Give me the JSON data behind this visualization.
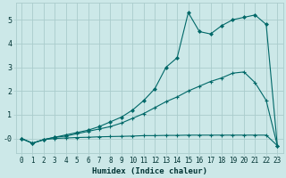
{
  "xlabel": "Humidex (Indice chaleur)",
  "bg_color": "#cce8e8",
  "grid_color": "#aacccc",
  "line_color": "#006868",
  "xlim": [
    -0.5,
    23.5
  ],
  "ylim": [
    -0.6,
    5.7
  ],
  "xticks": [
    0,
    1,
    2,
    3,
    4,
    5,
    6,
    7,
    8,
    9,
    10,
    11,
    12,
    13,
    14,
    15,
    16,
    17,
    18,
    19,
    20,
    21,
    22,
    23
  ],
  "yticks": [
    0,
    1,
    2,
    3,
    4,
    5
  ],
  "ytick_labels": [
    "-0",
    "1",
    "2",
    "3",
    "4",
    "5"
  ],
  "line1_x": [
    0,
    1,
    2,
    3,
    4,
    5,
    6,
    7,
    8,
    9,
    10,
    11,
    12,
    13,
    14,
    15,
    16,
    17,
    18,
    19,
    20,
    21,
    22,
    23
  ],
  "line1_y": [
    0.0,
    -0.2,
    -0.05,
    0.0,
    0.02,
    0.04,
    0.05,
    0.07,
    0.08,
    0.09,
    0.1,
    0.12,
    0.12,
    0.13,
    0.13,
    0.14,
    0.14,
    0.14,
    0.14,
    0.14,
    0.14,
    0.14,
    0.14,
    -0.3
  ],
  "line2_x": [
    0,
    1,
    2,
    3,
    4,
    5,
    6,
    7,
    8,
    9,
    10,
    11,
    12,
    13,
    14,
    15,
    16,
    17,
    18,
    19,
    20,
    21,
    22,
    23
  ],
  "line2_y": [
    0.0,
    -0.2,
    -0.05,
    0.05,
    0.1,
    0.2,
    0.3,
    0.4,
    0.5,
    0.65,
    0.85,
    1.05,
    1.3,
    1.55,
    1.75,
    2.0,
    2.2,
    2.4,
    2.55,
    2.75,
    2.8,
    2.35,
    1.6,
    -0.3
  ],
  "line3_x": [
    0,
    1,
    2,
    3,
    4,
    5,
    6,
    7,
    8,
    9,
    10,
    11,
    12,
    13,
    14,
    15,
    16,
    17,
    18,
    19,
    20,
    21,
    22,
    23
  ],
  "line3_y": [
    0.0,
    -0.2,
    -0.05,
    0.05,
    0.15,
    0.25,
    0.35,
    0.5,
    0.7,
    0.9,
    1.2,
    1.6,
    2.1,
    3.0,
    3.4,
    5.3,
    4.5,
    4.4,
    4.75,
    5.0,
    5.1,
    5.2,
    4.8,
    -0.3
  ],
  "xlabel_fontsize": 6.5,
  "tick_fontsize": 5.5,
  "ytick_fontsize": 6.0
}
